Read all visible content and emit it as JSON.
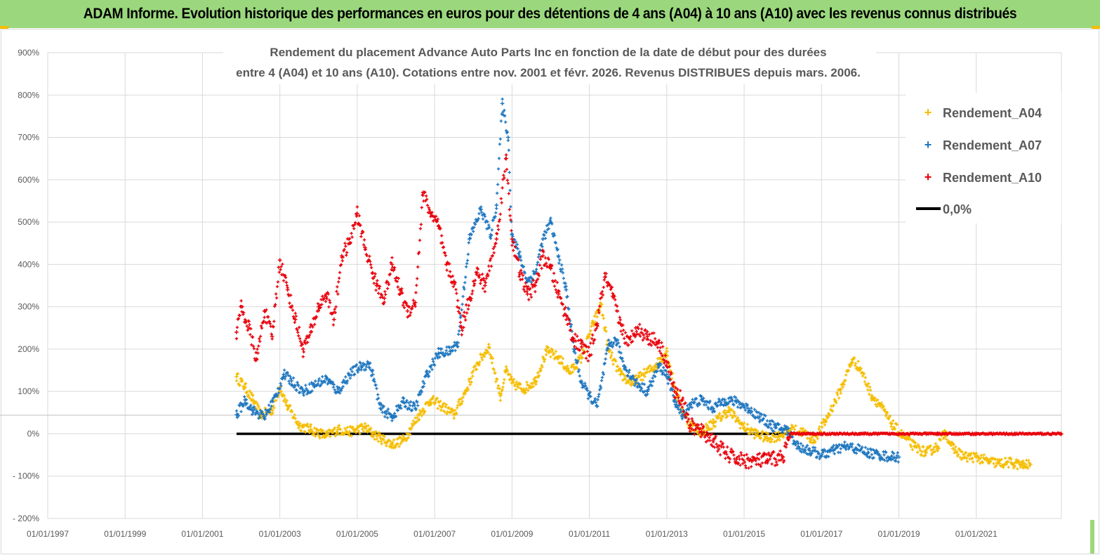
{
  "banner": {
    "title": "ADAM Informe. Evolution historique des performances en euros pour des détentions de 4 ans (A04) à 10 ans (A10) avec les revenus connus distribués"
  },
  "chart_data": {
    "type": "scatter",
    "title_line1": "Rendement du placement Advance Auto Parts Inc en fonction de la date de début pour des durées",
    "title_line2": "entre 4 (A04) et 10 ans (A10). Cotations entre nov. 2001 et févr. 2026. Revenus DISTRIBUES depuis mars. 2006.",
    "xlabel": "",
    "ylabel": "",
    "x_tick_labels": [
      "01/01/1997",
      "01/01/1999",
      "01/01/2001",
      "01/01/2003",
      "01/01/2005",
      "01/01/2007",
      "01/01/2009",
      "01/01/2011",
      "01/01/2013",
      "01/01/2015",
      "01/01/2017",
      "01/01/2019",
      "01/01/2021"
    ],
    "y_tick_labels": [
      "900%",
      "800%",
      "700%",
      "600%",
      "500%",
      "400%",
      "300%",
      "200%",
      "100%",
      "0%",
      "- 100%",
      "- 200%"
    ],
    "xlim": [
      1997.0,
      2023.2
    ],
    "ylim": [
      -200,
      900
    ],
    "grid": true,
    "legend_position": "top-right",
    "series": [
      {
        "name": "Rendement_A04",
        "color": "#f5bd00",
        "marker": "+",
        "points": [
          [
            2001.88,
            135
          ],
          [
            2002.1,
            110
          ],
          [
            2002.3,
            80
          ],
          [
            2002.5,
            45
          ],
          [
            2002.8,
            55
          ],
          [
            2003.0,
            110
          ],
          [
            2003.2,
            65
          ],
          [
            2003.5,
            20
          ],
          [
            2003.8,
            10
          ],
          [
            2004.2,
            -5
          ],
          [
            2004.5,
            10
          ],
          [
            2004.8,
            5
          ],
          [
            2005.2,
            15
          ],
          [
            2005.4,
            0
          ],
          [
            2005.6,
            -10
          ],
          [
            2005.9,
            -25
          ],
          [
            2006.2,
            -15
          ],
          [
            2006.6,
            45
          ],
          [
            2006.9,
            80
          ],
          [
            2007.2,
            65
          ],
          [
            2007.5,
            45
          ],
          [
            2007.8,
            100
          ],
          [
            2008.1,
            165
          ],
          [
            2008.4,
            205
          ],
          [
            2008.7,
            90
          ],
          [
            2008.85,
            150
          ],
          [
            2009.0,
            120
          ],
          [
            2009.3,
            105
          ],
          [
            2009.6,
            125
          ],
          [
            2009.9,
            195
          ],
          [
            2010.2,
            180
          ],
          [
            2010.5,
            145
          ],
          [
            2010.8,
            180
          ],
          [
            2011.1,
            260
          ],
          [
            2011.3,
            305
          ],
          [
            2011.5,
            195
          ],
          [
            2011.8,
            140
          ],
          [
            2012.1,
            120
          ],
          [
            2012.4,
            140
          ],
          [
            2012.7,
            160
          ],
          [
            2013.0,
            195
          ],
          [
            2013.2,
            110
          ],
          [
            2013.4,
            55
          ],
          [
            2013.6,
            20
          ],
          [
            2013.9,
            5
          ],
          [
            2014.2,
            25
          ],
          [
            2014.6,
            55
          ],
          [
            2015.0,
            15
          ],
          [
            2015.3,
            0
          ],
          [
            2015.6,
            -10
          ],
          [
            2015.9,
            -5
          ],
          [
            2016.2,
            10
          ],
          [
            2016.5,
            5
          ],
          [
            2016.8,
            -15
          ],
          [
            2017.1,
            30
          ],
          [
            2017.5,
            105
          ],
          [
            2017.8,
            175
          ],
          [
            2018.0,
            155
          ],
          [
            2018.3,
            90
          ],
          [
            2018.5,
            70
          ],
          [
            2018.8,
            25
          ],
          [
            2019.1,
            -5
          ],
          [
            2019.4,
            -30
          ],
          [
            2019.7,
            -45
          ],
          [
            2020.0,
            -30
          ],
          [
            2020.2,
            5
          ],
          [
            2020.4,
            -35
          ],
          [
            2020.7,
            -55
          ],
          [
            2021.0,
            -55
          ],
          [
            2021.3,
            -65
          ],
          [
            2021.6,
            -70
          ],
          [
            2021.9,
            -68
          ],
          [
            2022.2,
            -75
          ],
          [
            2022.4,
            -72
          ]
        ]
      },
      {
        "name": "Rendement_A07",
        "color": "#1f77c0",
        "marker": "+",
        "points": [
          [
            2001.88,
            45
          ],
          [
            2002.1,
            80
          ],
          [
            2002.3,
            55
          ],
          [
            2002.6,
            40
          ],
          [
            2002.9,
            90
          ],
          [
            2003.1,
            140
          ],
          [
            2003.3,
            125
          ],
          [
            2003.6,
            100
          ],
          [
            2003.9,
            115
          ],
          [
            2004.2,
            130
          ],
          [
            2004.5,
            100
          ],
          [
            2004.8,
            140
          ],
          [
            2005.1,
            160
          ],
          [
            2005.3,
            165
          ],
          [
            2005.4,
            140
          ],
          [
            2005.6,
            60
          ],
          [
            2005.9,
            40
          ],
          [
            2006.2,
            75
          ],
          [
            2006.5,
            60
          ],
          [
            2006.8,
            140
          ],
          [
            2007.1,
            190
          ],
          [
            2007.4,
            195
          ],
          [
            2007.6,
            215
          ],
          [
            2007.9,
            460
          ],
          [
            2008.2,
            530
          ],
          [
            2008.45,
            470
          ],
          [
            2008.6,
            540
          ],
          [
            2008.75,
            780
          ],
          [
            2008.9,
            700
          ],
          [
            2009.0,
            470
          ],
          [
            2009.2,
            420
          ],
          [
            2009.4,
            360
          ],
          [
            2009.6,
            380
          ],
          [
            2009.8,
            460
          ],
          [
            2010.0,
            500
          ],
          [
            2010.2,
            420
          ],
          [
            2010.4,
            340
          ],
          [
            2010.6,
            200
          ],
          [
            2010.8,
            120
          ],
          [
            2011.0,
            90
          ],
          [
            2011.2,
            65
          ],
          [
            2011.5,
            210
          ],
          [
            2011.7,
            220
          ],
          [
            2011.9,
            160
          ],
          [
            2012.2,
            120
          ],
          [
            2012.5,
            100
          ],
          [
            2012.8,
            160
          ],
          [
            2013.0,
            140
          ],
          [
            2013.2,
            80
          ],
          [
            2013.4,
            40
          ],
          [
            2013.6,
            70
          ],
          [
            2013.9,
            80
          ],
          [
            2014.2,
            60
          ],
          [
            2014.5,
            80
          ],
          [
            2014.8,
            75
          ],
          [
            2015.1,
            60
          ],
          [
            2015.4,
            40
          ],
          [
            2015.8,
            15
          ],
          [
            2016.1,
            10
          ],
          [
            2016.4,
            -30
          ],
          [
            2016.7,
            -40
          ],
          [
            2017.0,
            -50
          ],
          [
            2017.3,
            -40
          ],
          [
            2017.6,
            -30
          ],
          [
            2017.9,
            -35
          ],
          [
            2018.2,
            -45
          ],
          [
            2018.5,
            -50
          ],
          [
            2018.8,
            -55
          ],
          [
            2019.0,
            -55
          ]
        ]
      },
      {
        "name": "Rendement_A10",
        "color": "#e8000b",
        "marker": "+",
        "points": [
          [
            2001.88,
            240
          ],
          [
            2002.0,
            300
          ],
          [
            2002.2,
            250
          ],
          [
            2002.4,
            175
          ],
          [
            2002.6,
            290
          ],
          [
            2002.8,
            230
          ],
          [
            2003.0,
            410
          ],
          [
            2003.2,
            340
          ],
          [
            2003.4,
            270
          ],
          [
            2003.6,
            200
          ],
          [
            2003.8,
            240
          ],
          [
            2004.0,
            300
          ],
          [
            2004.2,
            330
          ],
          [
            2004.4,
            270
          ],
          [
            2004.6,
            420
          ],
          [
            2004.8,
            450
          ],
          [
            2005.0,
            520
          ],
          [
            2005.2,
            440
          ],
          [
            2005.4,
            380
          ],
          [
            2005.5,
            350
          ],
          [
            2005.7,
            320
          ],
          [
            2005.9,
            400
          ],
          [
            2006.1,
            340
          ],
          [
            2006.3,
            290
          ],
          [
            2006.5,
            310
          ],
          [
            2006.7,
            570
          ],
          [
            2006.9,
            520
          ],
          [
            2007.1,
            490
          ],
          [
            2007.3,
            400
          ],
          [
            2007.5,
            360
          ],
          [
            2007.7,
            250
          ],
          [
            2007.9,
            320
          ],
          [
            2008.1,
            380
          ],
          [
            2008.3,
            350
          ],
          [
            2008.6,
            460
          ],
          [
            2008.85,
            650
          ],
          [
            2009.0,
            460
          ],
          [
            2009.2,
            380
          ],
          [
            2009.4,
            330
          ],
          [
            2009.6,
            350
          ],
          [
            2009.8,
            420
          ],
          [
            2010.0,
            390
          ],
          [
            2010.2,
            330
          ],
          [
            2010.4,
            280
          ],
          [
            2010.6,
            220
          ],
          [
            2010.8,
            205
          ],
          [
            2011.0,
            185
          ],
          [
            2011.2,
            260
          ],
          [
            2011.4,
            370
          ],
          [
            2011.6,
            325
          ],
          [
            2011.8,
            260
          ],
          [
            2012.0,
            210
          ],
          [
            2012.2,
            250
          ],
          [
            2012.5,
            230
          ],
          [
            2012.8,
            215
          ],
          [
            2013.0,
            170
          ],
          [
            2013.2,
            100
          ],
          [
            2013.4,
            80
          ],
          [
            2013.6,
            20
          ],
          [
            2013.9,
            5
          ],
          [
            2014.2,
            -15
          ],
          [
            2014.5,
            -45
          ],
          [
            2014.8,
            -60
          ],
          [
            2015.2,
            -65
          ],
          [
            2015.6,
            -62
          ],
          [
            2016.0,
            -55
          ],
          [
            2016.2,
            0
          ],
          [
            2017.0,
            0
          ],
          [
            2018.0,
            0
          ],
          [
            2019.0,
            0
          ],
          [
            2020.0,
            0
          ],
          [
            2021.0,
            0
          ],
          [
            2022.0,
            0
          ],
          [
            2023.2,
            0
          ]
        ]
      },
      {
        "name": "0,0%",
        "color": "#000000",
        "marker": "line",
        "points": [
          [
            2001.88,
            0
          ],
          [
            2016.2,
            0
          ]
        ]
      }
    ]
  }
}
